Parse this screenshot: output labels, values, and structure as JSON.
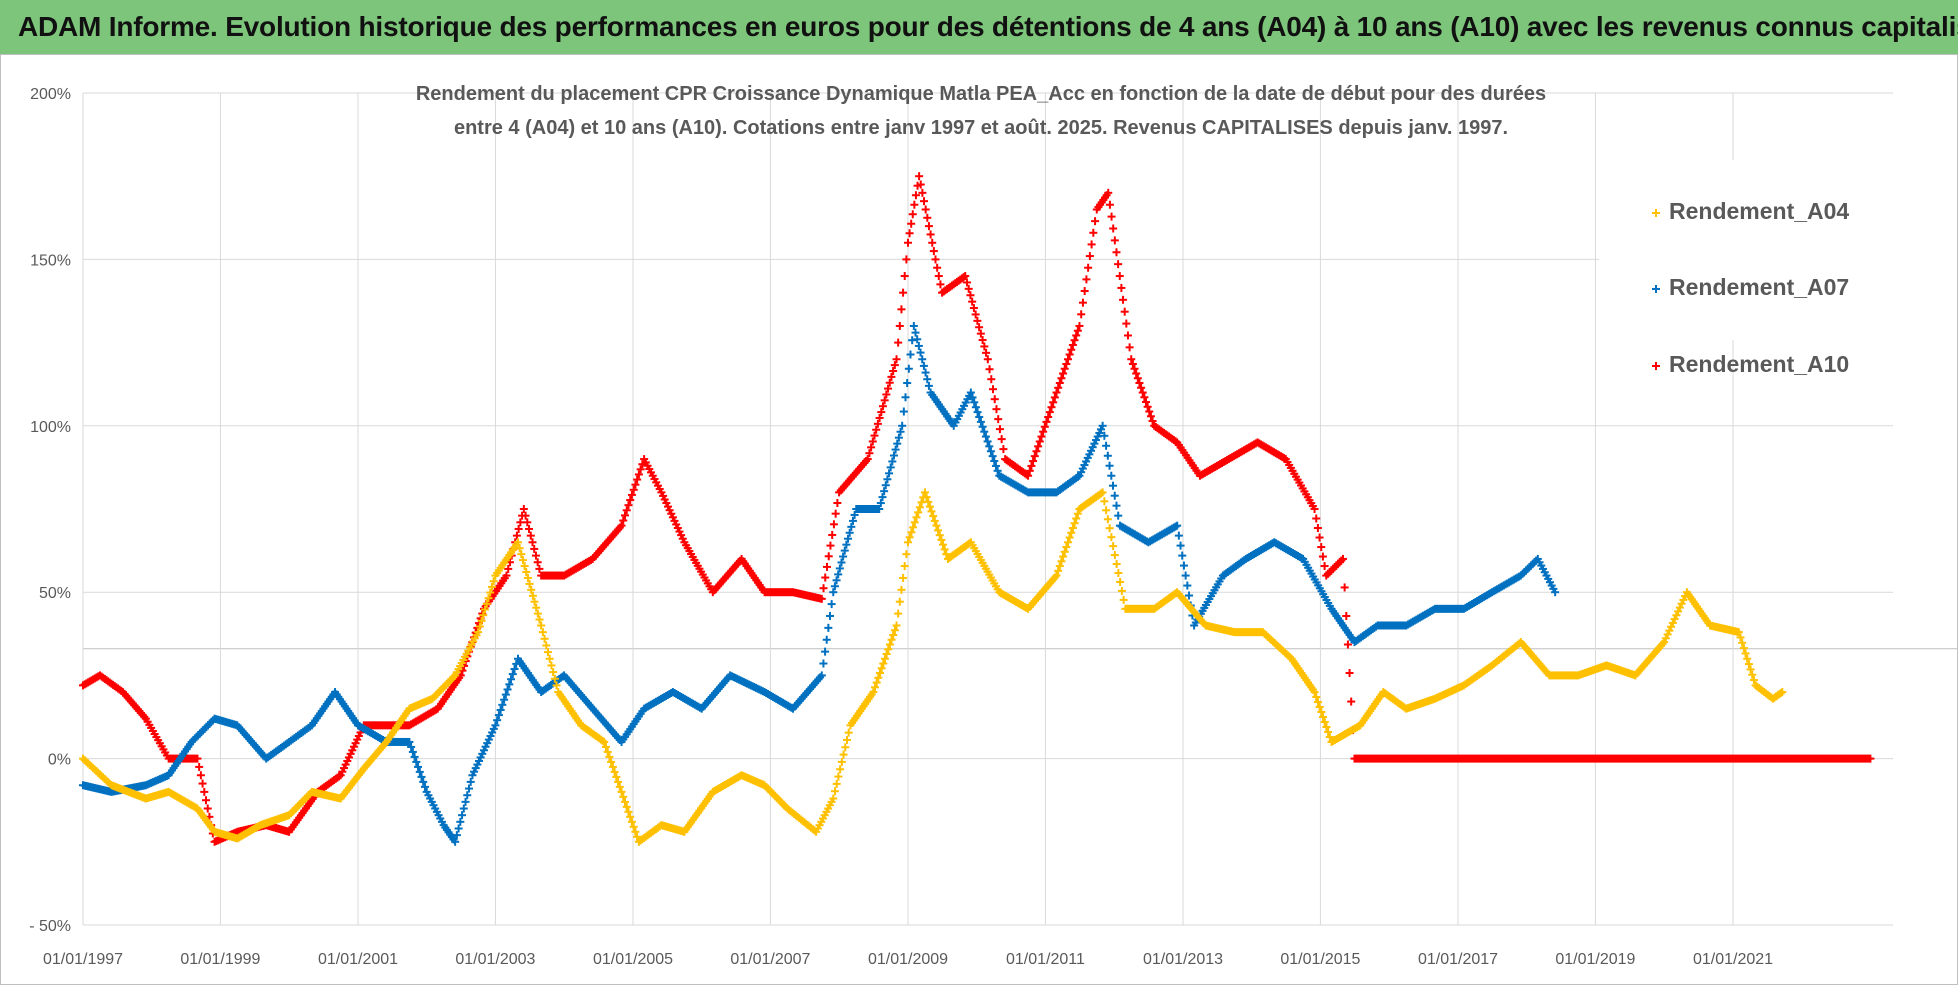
{
  "banner": {
    "title": "ADAM Informe. Evolution historique des performances en euros pour des détentions de 4 ans (A04) à 10 ans (A10) avec les revenus connus capitalisés"
  },
  "chart_data": {
    "type": "scatter",
    "title_line1": "Rendement du placement CPR Croissance Dynamique Matla PEA_Acc en fonction de la date de début pour des durées",
    "title_line2": "entre 4 (A04) et 10 ans (A10). Cotations entre janv 1997 et août. 2025. Revenus CAPITALISES depuis janv. 1997.",
    "x_ticks": [
      "01/01/1997",
      "01/01/1999",
      "01/01/2001",
      "01/01/2003",
      "01/01/2005",
      "01/01/2007",
      "01/01/2009",
      "01/01/2011",
      "01/01/2013",
      "01/01/2015",
      "01/01/2017",
      "01/01/2019",
      "01/01/2021"
    ],
    "y_ticks": [
      "200%",
      "150%",
      "100%",
      "50%",
      "0%",
      "- 50%"
    ],
    "xlim": [
      "1997-01-01",
      "2023-05-01"
    ],
    "ylim": [
      -50,
      200
    ],
    "grid": true,
    "legend_position": "top-right",
    "marker": "+",
    "series": [
      {
        "name": "Rendement_A04",
        "color": "#ffc000",
        "points": [
          [
            "1997-01-01",
            0
          ],
          [
            "1997-06-01",
            -8
          ],
          [
            "1997-12-01",
            -12
          ],
          [
            "1998-04-01",
            -10
          ],
          [
            "1998-09-01",
            -15
          ],
          [
            "1998-12-01",
            -22
          ],
          [
            "1999-04-01",
            -24
          ],
          [
            "1999-08-01",
            -20
          ],
          [
            "2000-01-01",
            -17
          ],
          [
            "2000-05-01",
            -10
          ],
          [
            "2000-10-01",
            -12
          ],
          [
            "2001-02-01",
            -3
          ],
          [
            "2001-06-01",
            5
          ],
          [
            "2001-10-01",
            15
          ],
          [
            "2002-02-01",
            18
          ],
          [
            "2002-06-01",
            25
          ],
          [
            "2002-10-01",
            38
          ],
          [
            "2003-01-01",
            55
          ],
          [
            "2003-05-01",
            65
          ],
          [
            "2003-09-01",
            40
          ],
          [
            "2003-12-01",
            20
          ],
          [
            "2004-04-01",
            10
          ],
          [
            "2004-08-01",
            5
          ],
          [
            "2004-11-01",
            -10
          ],
          [
            "2005-02-01",
            -25
          ],
          [
            "2005-06-01",
            -20
          ],
          [
            "2005-10-01",
            -22
          ],
          [
            "2006-03-01",
            -10
          ],
          [
            "2006-08-01",
            -5
          ],
          [
            "2006-12-01",
            -8
          ],
          [
            "2007-04-01",
            -15
          ],
          [
            "2007-09-01",
            -22
          ],
          [
            "2007-12-01",
            -12
          ],
          [
            "2008-03-01",
            10
          ],
          [
            "2008-07-01",
            20
          ],
          [
            "2008-11-01",
            40
          ],
          [
            "2009-01-01",
            65
          ],
          [
            "2009-04-01",
            80
          ],
          [
            "2009-08-01",
            60
          ],
          [
            "2009-12-01",
            65
          ],
          [
            "2010-05-01",
            50
          ],
          [
            "2010-10-01",
            45
          ],
          [
            "2011-03-01",
            55
          ],
          [
            "2011-07-01",
            75
          ],
          [
            "2011-11-01",
            80
          ],
          [
            "2012-03-01",
            45
          ],
          [
            "2012-08-01",
            45
          ],
          [
            "2012-12-01",
            50
          ],
          [
            "2013-05-01",
            40
          ],
          [
            "2013-10-01",
            38
          ],
          [
            "2014-03-01",
            38
          ],
          [
            "2014-08-01",
            30
          ],
          [
            "2014-12-01",
            20
          ],
          [
            "2015-03-01",
            5
          ],
          [
            "2015-08-01",
            10
          ],
          [
            "2015-12-01",
            20
          ],
          [
            "2016-04-01",
            15
          ],
          [
            "2016-09-01",
            18
          ],
          [
            "2017-02-01",
            22
          ],
          [
            "2017-07-01",
            28
          ],
          [
            "2017-12-01",
            35
          ],
          [
            "2018-05-01",
            25
          ],
          [
            "2018-10-01",
            25
          ],
          [
            "2019-03-01",
            28
          ],
          [
            "2019-08-01",
            25
          ],
          [
            "2020-01-01",
            35
          ],
          [
            "2020-05-01",
            50
          ],
          [
            "2020-09-01",
            40
          ],
          [
            "2021-02-01",
            38
          ],
          [
            "2021-05-01",
            22
          ],
          [
            "2021-08-01",
            18
          ],
          [
            "2021-09-20",
            20
          ]
        ]
      },
      {
        "name": "Rendement_A07",
        "color": "#0070c0",
        "points": [
          [
            "1997-01-01",
            -8
          ],
          [
            "1997-06-01",
            -10
          ],
          [
            "1997-12-01",
            -8
          ],
          [
            "1998-04-01",
            -5
          ],
          [
            "1998-08-01",
            5
          ],
          [
            "1998-12-01",
            12
          ],
          [
            "1999-04-01",
            10
          ],
          [
            "1999-09-01",
            0
          ],
          [
            "2000-01-01",
            5
          ],
          [
            "2000-05-01",
            10
          ],
          [
            "2000-09-01",
            20
          ],
          [
            "2001-01-01",
            10
          ],
          [
            "2001-06-01",
            5
          ],
          [
            "2001-10-01",
            5
          ],
          [
            "2002-01-01",
            -10
          ],
          [
            "2002-04-01",
            -20
          ],
          [
            "2002-06-01",
            -25
          ],
          [
            "2002-09-01",
            -5
          ],
          [
            "2003-01-01",
            10
          ],
          [
            "2003-05-01",
            30
          ],
          [
            "2003-09-01",
            20
          ],
          [
            "2004-01-01",
            25
          ],
          [
            "2004-06-01",
            15
          ],
          [
            "2004-11-01",
            5
          ],
          [
            "2005-03-01",
            15
          ],
          [
            "2005-08-01",
            20
          ],
          [
            "2006-01-01",
            15
          ],
          [
            "2006-06-01",
            25
          ],
          [
            "2006-12-01",
            20
          ],
          [
            "2007-05-01",
            15
          ],
          [
            "2007-10-01",
            25
          ],
          [
            "2007-12-01",
            50
          ],
          [
            "2008-04-01",
            75
          ],
          [
            "2008-08-01",
            75
          ],
          [
            "2008-12-01",
            100
          ],
          [
            "2009-02-01",
            130
          ],
          [
            "2009-05-01",
            110
          ],
          [
            "2009-09-01",
            100
          ],
          [
            "2009-12-01",
            110
          ],
          [
            "2010-05-01",
            85
          ],
          [
            "2010-10-01",
            80
          ],
          [
            "2011-03-01",
            80
          ],
          [
            "2011-07-01",
            85
          ],
          [
            "2011-11-01",
            100
          ],
          [
            "2012-02-01",
            70
          ],
          [
            "2012-07-01",
            65
          ],
          [
            "2012-12-01",
            70
          ],
          [
            "2013-03-01",
            40
          ],
          [
            "2013-08-01",
            55
          ],
          [
            "2013-12-01",
            60
          ],
          [
            "2014-05-01",
            65
          ],
          [
            "2014-10-01",
            60
          ],
          [
            "2015-03-01",
            45
          ],
          [
            "2015-07-01",
            35
          ],
          [
            "2015-11-01",
            40
          ],
          [
            "2016-04-01",
            40
          ],
          [
            "2016-09-01",
            45
          ],
          [
            "2017-02-01",
            45
          ],
          [
            "2017-07-01",
            50
          ],
          [
            "2017-12-01",
            55
          ],
          [
            "2018-03-01",
            60
          ],
          [
            "2018-06-01",
            50
          ]
        ]
      },
      {
        "name": "Rendement_A10",
        "color": "#ff0000",
        "points": [
          [
            "1997-01-01",
            22
          ],
          [
            "1997-04-01",
            25
          ],
          [
            "1997-08-01",
            20
          ],
          [
            "1997-12-01",
            12
          ],
          [
            "1998-04-01",
            0
          ],
          [
            "1998-09-01",
            0
          ],
          [
            "1998-12-01",
            -25
          ],
          [
            "1999-04-01",
            -22
          ],
          [
            "1999-09-01",
            -20
          ],
          [
            "2000-01-01",
            -22
          ],
          [
            "2000-06-01",
            -10
          ],
          [
            "2000-10-01",
            -5
          ],
          [
            "2001-02-01",
            10
          ],
          [
            "2001-06-01",
            10
          ],
          [
            "2001-10-01",
            10
          ],
          [
            "2002-03-01",
            15
          ],
          [
            "2002-07-01",
            25
          ],
          [
            "2002-11-01",
            45
          ],
          [
            "2003-03-01",
            55
          ],
          [
            "2003-06-01",
            75
          ],
          [
            "2003-09-01",
            55
          ],
          [
            "2004-01-01",
            55
          ],
          [
            "2004-06-01",
            60
          ],
          [
            "2004-11-01",
            70
          ],
          [
            "2005-03-01",
            90
          ],
          [
            "2005-06-01",
            80
          ],
          [
            "2005-10-01",
            65
          ],
          [
            "2006-03-01",
            50
          ],
          [
            "2006-08-01",
            60
          ],
          [
            "2006-12-01",
            50
          ],
          [
            "2007-05-01",
            50
          ],
          [
            "2007-10-01",
            48
          ],
          [
            "2008-01-01",
            80
          ],
          [
            "2008-06-01",
            90
          ],
          [
            "2008-11-01",
            120
          ],
          [
            "2009-01-01",
            155
          ],
          [
            "2009-03-01",
            175
          ],
          [
            "2009-07-01",
            140
          ],
          [
            "2009-11-01",
            145
          ],
          [
            "2010-03-01",
            120
          ],
          [
            "2010-06-01",
            90
          ],
          [
            "2010-10-01",
            85
          ],
          [
            "2011-03-01",
            110
          ],
          [
            "2011-07-01",
            130
          ],
          [
            "2011-10-01",
            165
          ],
          [
            "2011-12-01",
            170
          ],
          [
            "2012-04-01",
            120
          ],
          [
            "2012-08-01",
            100
          ],
          [
            "2012-12-01",
            95
          ],
          [
            "2013-04-01",
            85
          ],
          [
            "2013-09-01",
            90
          ],
          [
            "2014-02-01",
            95
          ],
          [
            "2014-07-01",
            90
          ],
          [
            "2014-12-01",
            75
          ],
          [
            "2015-02-01",
            55
          ],
          [
            "2015-05-01",
            60
          ],
          [
            "2015-07-01",
            0
          ],
          [
            "2016-06-01",
            0
          ],
          [
            "2017-06-01",
            0
          ],
          [
            "2018-06-01",
            0
          ],
          [
            "2019-06-01",
            0
          ],
          [
            "2020-06-01",
            0
          ],
          [
            "2021-06-01",
            0
          ],
          [
            "2022-06-01",
            0
          ],
          [
            "2023-01-01",
            0
          ]
        ]
      }
    ]
  }
}
